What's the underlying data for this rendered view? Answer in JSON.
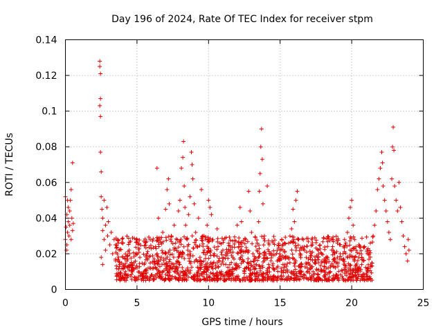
{
  "chart_data": {
    "type": "scatter",
    "title": "Day 196 of 2024, Rate Of TEC Index for receiver stpm",
    "xlabel": "GPS time / hours",
    "ylabel": "ROTI / TECUs",
    "xlim": [
      0,
      25
    ],
    "ylim": [
      0,
      0.14
    ],
    "x_ticks": [
      0,
      5,
      10,
      15,
      20,
      25
    ],
    "x_tick_labels": [
      "0",
      "5",
      "10",
      "15",
      "20",
      "25"
    ],
    "y_ticks": [
      0,
      0.02,
      0.04,
      0.06,
      0.08,
      0.1,
      0.12,
      0.14
    ],
    "y_tick_labels": [
      "0",
      "0.02",
      "0.04",
      "0.06",
      "0.08",
      "0.1",
      "0.12",
      "0.14"
    ],
    "grid": true,
    "marker": "+",
    "color": "#e00000",
    "series": [
      {
        "name": "ROTI",
        "points": [
          [
            0.0,
            0.028
          ],
          [
            0.05,
            0.035
          ],
          [
            0.1,
            0.042
          ],
          [
            0.1,
            0.025
          ],
          [
            0.15,
            0.05
          ],
          [
            0.15,
            0.032
          ],
          [
            0.2,
            0.038
          ],
          [
            0.2,
            0.046
          ],
          [
            0.25,
            0.03
          ],
          [
            0.3,
            0.044
          ],
          [
            0.3,
            0.036
          ],
          [
            0.35,
            0.05
          ],
          [
            0.4,
            0.028
          ],
          [
            0.4,
            0.056
          ],
          [
            0.45,
            0.04
          ],
          [
            0.5,
            0.071
          ],
          [
            0.5,
            0.033
          ],
          [
            0.55,
            0.037
          ],
          [
            0.0,
            0.052
          ],
          [
            0.08,
            0.022
          ],
          [
            2.4,
            0.128
          ],
          [
            2.4,
            0.125
          ],
          [
            2.45,
            0.121
          ],
          [
            2.45,
            0.107
          ],
          [
            2.4,
            0.103
          ],
          [
            2.45,
            0.097
          ],
          [
            2.45,
            0.077
          ],
          [
            2.5,
            0.066
          ],
          [
            2.5,
            0.052
          ],
          [
            2.55,
            0.045
          ],
          [
            2.6,
            0.04
          ],
          [
            2.6,
            0.033
          ],
          [
            2.7,
            0.05
          ],
          [
            2.7,
            0.028
          ],
          [
            2.8,
            0.036
          ],
          [
            2.8,
            0.022
          ],
          [
            2.9,
            0.046
          ],
          [
            2.95,
            0.03
          ],
          [
            3.0,
            0.038
          ],
          [
            3.1,
            0.025
          ],
          [
            3.2,
            0.032
          ],
          [
            3.3,
            0.02
          ],
          [
            2.5,
            0.018
          ],
          [
            2.6,
            0.014
          ],
          [
            3.4,
            0.028
          ],
          [
            3.5,
            0.017
          ],
          [
            3.7,
            0.026
          ],
          [
            3.8,
            0.014
          ],
          [
            4.0,
            0.018
          ],
          [
            4.1,
            0.012
          ],
          [
            4.3,
            0.016
          ],
          [
            4.5,
            0.02
          ],
          [
            4.6,
            0.011
          ],
          [
            4.8,
            0.015
          ],
          [
            5.0,
            0.012
          ],
          [
            5.2,
            0.018
          ],
          [
            5.4,
            0.009
          ],
          [
            5.5,
            0.014
          ],
          [
            5.7,
            0.02
          ],
          [
            5.9,
            0.012
          ],
          [
            6.0,
            0.008
          ],
          [
            6.2,
            0.016
          ],
          [
            6.3,
            0.024
          ],
          [
            6.4,
            0.068
          ],
          [
            6.5,
            0.04
          ],
          [
            6.6,
            0.028
          ],
          [
            6.7,
            0.018
          ],
          [
            6.8,
            0.032
          ],
          [
            6.9,
            0.014
          ],
          [
            7.0,
            0.045
          ],
          [
            7.1,
            0.056
          ],
          [
            7.2,
            0.062
          ],
          [
            7.25,
            0.048
          ],
          [
            7.3,
            0.022
          ],
          [
            7.4,
            0.03
          ],
          [
            7.5,
            0.012
          ],
          [
            7.6,
            0.036
          ],
          [
            7.7,
            0.026
          ],
          [
            7.8,
            0.016
          ],
          [
            7.9,
            0.044
          ],
          [
            8.0,
            0.05
          ],
          [
            8.1,
            0.068
          ],
          [
            8.2,
            0.074
          ],
          [
            8.25,
            0.083
          ],
          [
            8.3,
            0.058
          ],
          [
            8.35,
            0.046
          ],
          [
            8.4,
            0.036
          ],
          [
            8.5,
            0.028
          ],
          [
            8.55,
            0.022
          ],
          [
            8.6,
            0.042
          ],
          [
            8.7,
            0.052
          ],
          [
            8.8,
            0.077
          ],
          [
            8.85,
            0.07
          ],
          [
            8.9,
            0.062
          ],
          [
            9.0,
            0.048
          ],
          [
            9.1,
            0.032
          ],
          [
            9.2,
            0.024
          ],
          [
            9.3,
            0.04
          ],
          [
            9.4,
            0.018
          ],
          [
            9.5,
            0.056
          ],
          [
            9.6,
            0.03
          ],
          [
            9.7,
            0.022
          ],
          [
            9.8,
            0.014
          ],
          [
            9.9,
            0.036
          ],
          [
            10.0,
            0.05
          ],
          [
            10.1,
            0.046
          ],
          [
            10.2,
            0.042
          ],
          [
            10.3,
            0.028
          ],
          [
            10.4,
            0.02
          ],
          [
            10.5,
            0.012
          ],
          [
            10.6,
            0.034
          ],
          [
            10.7,
            0.016
          ],
          [
            10.8,
            0.026
          ],
          [
            10.9,
            0.01
          ],
          [
            11.0,
            0.022
          ],
          [
            11.2,
            0.014
          ],
          [
            11.4,
            0.026
          ],
          [
            11.5,
            0.01
          ],
          [
            11.7,
            0.018
          ],
          [
            11.9,
            0.012
          ],
          [
            12.0,
            0.036
          ],
          [
            12.1,
            0.024
          ],
          [
            12.2,
            0.046
          ],
          [
            12.3,
            0.038
          ],
          [
            12.4,
            0.016
          ],
          [
            12.5,
            0.01
          ],
          [
            12.6,
            0.028
          ],
          [
            12.8,
            0.055
          ],
          [
            12.9,
            0.044
          ],
          [
            13.0,
            0.032
          ],
          [
            13.1,
            0.02
          ],
          [
            13.2,
            0.012
          ],
          [
            13.4,
            0.026
          ],
          [
            13.5,
            0.038
          ],
          [
            13.55,
            0.055
          ],
          [
            13.6,
            0.065
          ],
          [
            13.65,
            0.08
          ],
          [
            13.7,
            0.09
          ],
          [
            13.75,
            0.073
          ],
          [
            13.8,
            0.048
          ],
          [
            13.9,
            0.03
          ],
          [
            14.0,
            0.02
          ],
          [
            14.1,
            0.058
          ],
          [
            14.2,
            0.014
          ],
          [
            14.4,
            0.02
          ],
          [
            14.6,
            0.011
          ],
          [
            14.8,
            0.016
          ],
          [
            15.0,
            0.022
          ],
          [
            15.2,
            0.014
          ],
          [
            15.4,
            0.018
          ],
          [
            15.6,
            0.026
          ],
          [
            15.8,
            0.034
          ],
          [
            15.9,
            0.045
          ],
          [
            16.0,
            0.038
          ],
          [
            16.1,
            0.05
          ],
          [
            16.2,
            0.055
          ],
          [
            16.3,
            0.028
          ],
          [
            16.4,
            0.02
          ],
          [
            16.5,
            0.014
          ],
          [
            16.7,
            0.022
          ],
          [
            16.9,
            0.012
          ],
          [
            17.1,
            0.018
          ],
          [
            17.3,
            0.01
          ],
          [
            17.5,
            0.016
          ],
          [
            17.7,
            0.011
          ],
          [
            17.9,
            0.02
          ],
          [
            18.1,
            0.013
          ],
          [
            18.3,
            0.017
          ],
          [
            18.5,
            0.01
          ],
          [
            18.7,
            0.022
          ],
          [
            18.9,
            0.015
          ],
          [
            19.0,
            0.018
          ],
          [
            19.2,
            0.025
          ],
          [
            19.4,
            0.02
          ],
          [
            19.5,
            0.028
          ],
          [
            19.7,
            0.032
          ],
          [
            19.8,
            0.04
          ],
          [
            19.9,
            0.046
          ],
          [
            20.0,
            0.05
          ],
          [
            20.1,
            0.036
          ],
          [
            20.2,
            0.028
          ],
          [
            20.3,
            0.022
          ],
          [
            20.5,
            0.018
          ],
          [
            20.7,
            0.014
          ],
          [
            20.9,
            0.024
          ],
          [
            21.1,
            0.02
          ],
          [
            21.3,
            0.026
          ],
          [
            21.5,
            0.03
          ],
          [
            21.6,
            0.036
          ],
          [
            21.7,
            0.044
          ],
          [
            21.8,
            0.056
          ],
          [
            21.9,
            0.062
          ],
          [
            22.0,
            0.068
          ],
          [
            22.1,
            0.077
          ],
          [
            22.15,
            0.071
          ],
          [
            22.2,
            0.058
          ],
          [
            22.3,
            0.05
          ],
          [
            22.4,
            0.044
          ],
          [
            22.5,
            0.038
          ],
          [
            22.6,
            0.032
          ],
          [
            22.7,
            0.028
          ],
          [
            22.8,
            0.062
          ],
          [
            22.85,
            0.08
          ],
          [
            22.9,
            0.091
          ],
          [
            22.95,
            0.078
          ],
          [
            23.0,
            0.058
          ],
          [
            23.1,
            0.05
          ],
          [
            23.2,
            0.044
          ],
          [
            23.3,
            0.06
          ],
          [
            23.4,
            0.046
          ],
          [
            23.5,
            0.038
          ],
          [
            23.6,
            0.03
          ],
          [
            23.7,
            0.024
          ],
          [
            23.8,
            0.02
          ],
          [
            23.9,
            0.016
          ],
          [
            23.95,
            0.028
          ],
          [
            24.0,
            0.022
          ]
        ]
      }
    ],
    "dense_band": {
      "note": "dense cloud of points between 0.005 and 0.03 from hour 3.5 to 21.5",
      "x_range": [
        3.5,
        21.5
      ],
      "y_min": 0.005,
      "y_max": 0.03,
      "count": 1400
    }
  }
}
